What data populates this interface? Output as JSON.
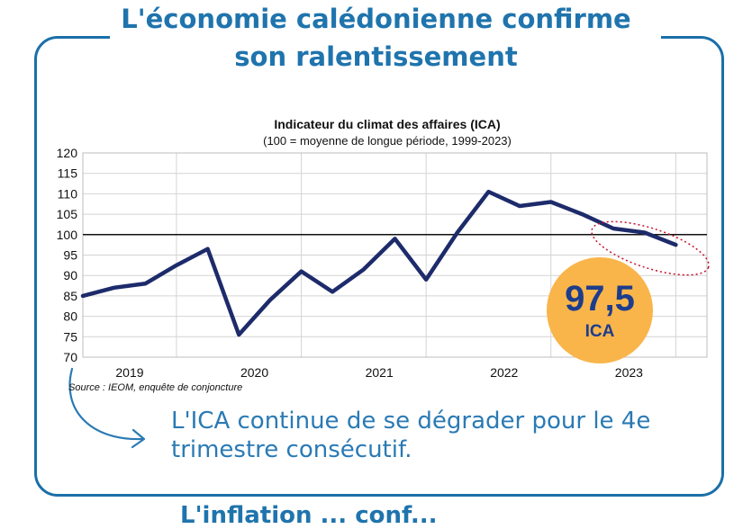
{
  "page": {
    "headline_line1": "L'économie calédonienne confirme",
    "headline_line2": "son ralentissement",
    "source_text": "Source :  IEOM, enquête de conjoncture",
    "badge_value": "97,5",
    "badge_label": "ICA",
    "note_line1": "L'ICA continue de se dégrader pour le 4e",
    "note_line2": "trimestre consécutif.",
    "bottom_text_fragment": "L'inflation ... conf...",
    "colors": {
      "accent": "#1f74ad",
      "line": "#1d2b6b",
      "badge": "#f9b54a",
      "highlight": "#c8102e"
    },
    "icons": [
      "curved-arrow-icon",
      "dotted-ellipse-highlight"
    ]
  },
  "chart_data": {
    "type": "line",
    "title": "Indicateur du climat des affaires (ICA)",
    "subtitle": "(100 = moyenne de longue période, 1999-2023)",
    "categories": [
      "2019",
      "2020",
      "2021",
      "2022",
      "2023"
    ],
    "x": [
      "2018T4",
      "2019T1",
      "2019T2",
      "2019T3",
      "2019T4",
      "2020T1",
      "2020T2",
      "2020T3",
      "2020T4",
      "2021T1",
      "2021T2",
      "2021T3",
      "2021T4",
      "2022T1",
      "2022T2",
      "2022T3",
      "2022T4",
      "2023T1",
      "2023T2",
      "2023T3"
    ],
    "series": [
      {
        "values": [
          85,
          87,
          88,
          92.5,
          96.5,
          75.5,
          84,
          91,
          86,
          91.5,
          99,
          89,
          100.5,
          110.5,
          107,
          108,
          105,
          101.5,
          100.5,
          97.5
        ]
      }
    ],
    "reference_line": 100,
    "ylim": [
      70,
      120
    ],
    "yticks": [
      70,
      75,
      80,
      85,
      90,
      95,
      100,
      105,
      110,
      115,
      120
    ],
    "grid": true,
    "xlabel": "",
    "ylabel": ""
  }
}
